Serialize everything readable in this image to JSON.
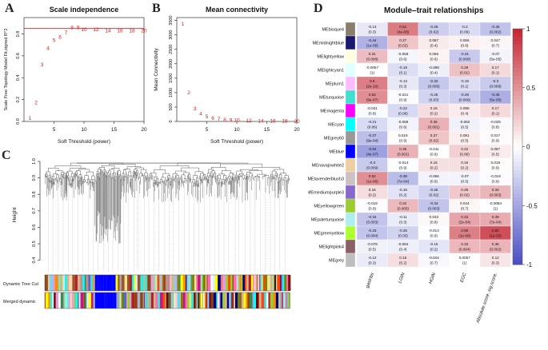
{
  "panels": {
    "A": "A",
    "B": "B",
    "C": "C",
    "D": "D"
  },
  "chart_data": [
    {
      "type": "scatter",
      "panel": "A",
      "title": "Scale independence",
      "xlabel": "Soft Threshold (power)",
      "ylabel": "Scale Free Topology Model Fit,signed R^2",
      "xlim": [
        0,
        20
      ],
      "ylim": [
        0,
        0.95
      ],
      "xticks": [
        "5",
        "10",
        "15",
        "20"
      ],
      "yticks": [
        "0.0",
        "0.2",
        "0.4",
        "0.6",
        "0.8"
      ],
      "cutoff_line": 0.85,
      "points": [
        {
          "x": 1,
          "y": 0.03,
          "label": "1"
        },
        {
          "x": 2,
          "y": 0.17,
          "label": "2"
        },
        {
          "x": 3,
          "y": 0.52,
          "label": "3"
        },
        {
          "x": 4,
          "y": 0.67,
          "label": "4"
        },
        {
          "x": 5,
          "y": 0.74,
          "label": "5"
        },
        {
          "x": 6,
          "y": 0.77,
          "label": "6"
        },
        {
          "x": 7,
          "y": 0.81,
          "label": "7"
        },
        {
          "x": 8,
          "y": 0.86,
          "label": "8"
        },
        {
          "x": 9,
          "y": 0.86,
          "label": "9"
        },
        {
          "x": 10,
          "y": 0.84,
          "label": "10"
        },
        {
          "x": 12,
          "y": 0.84,
          "label": "12"
        },
        {
          "x": 14,
          "y": 0.83,
          "label": "14"
        },
        {
          "x": 16,
          "y": 0.83,
          "label": "16"
        },
        {
          "x": 18,
          "y": 0.83,
          "label": "18"
        },
        {
          "x": 20,
          "y": 0.83,
          "label": "20"
        }
      ]
    },
    {
      "type": "scatter",
      "panel": "B",
      "title": "Mean connectivity",
      "xlabel": "Soft Threshold (power)",
      "ylabel": "Mean Connectivity",
      "xlim": [
        0,
        20
      ],
      "ylim": [
        0,
        3600
      ],
      "xticks": [
        "5",
        "10",
        "15",
        "20"
      ],
      "yticks": [
        "0",
        "500",
        "1000",
        "1500",
        "2000",
        "2500",
        "3000",
        "3500"
      ],
      "points": [
        {
          "x": 1,
          "y": 3380,
          "label": "1"
        },
        {
          "x": 2,
          "y": 1000,
          "label": "2"
        },
        {
          "x": 3,
          "y": 450,
          "label": "3"
        },
        {
          "x": 4,
          "y": 260,
          "label": "4"
        },
        {
          "x": 5,
          "y": 170,
          "label": "5"
        },
        {
          "x": 6,
          "y": 110,
          "label": "6"
        },
        {
          "x": 7,
          "y": 80,
          "label": "7"
        },
        {
          "x": 8,
          "y": 60,
          "label": "8"
        },
        {
          "x": 9,
          "y": 45,
          "label": "9"
        },
        {
          "x": 10,
          "y": 35,
          "label": "10"
        },
        {
          "x": 12,
          "y": 25,
          "label": "12"
        },
        {
          "x": 14,
          "y": 15,
          "label": "14"
        },
        {
          "x": 16,
          "y": 10,
          "label": "16"
        },
        {
          "x": 18,
          "y": 8,
          "label": "18"
        },
        {
          "x": 20,
          "y": 5,
          "label": "20"
        }
      ]
    },
    {
      "type": "dendrogram",
      "panel": "C",
      "title": "Cluster Dendrogram",
      "ylabel": "Height",
      "yticks": [
        "0.4",
        "0.5",
        "0.6",
        "0.7",
        "0.8",
        "0.9",
        "1.0"
      ],
      "ylim": [
        0.35,
        1.0
      ],
      "row_labels": [
        "Dynamic Tree Cut",
        "Merged dynamic"
      ],
      "palette": [
        "#7f0000",
        "#ffd7a8",
        "#a0522d",
        "#ffffff",
        "#c71585",
        "#808000",
        "#ff69b4",
        "#40e0d0",
        "#9acd32",
        "#87ceeb",
        "#d2b48c",
        "#ffc0cb",
        "#a9a9a9",
        "#6a5acd",
        "#ff8c00",
        "#e6e6fa",
        "#90ee90",
        "#b22222",
        "#00ffff",
        "#ffff00",
        "#000080",
        "#f0e68c",
        "#bc8f8f",
        "#dda0dd",
        "#2e8b57",
        "#8b4513",
        "#ff4500",
        "#7fffd4"
      ],
      "blue_block": "#0000ff"
    },
    {
      "type": "heatmap",
      "panel": "D",
      "title": "Module–trait relationships",
      "columns": [
        "gastritis",
        "LGIN",
        "HGIN",
        "EGC",
        "Absolute.score..sig.score."
      ],
      "legend_ticks": [
        "1",
        "0.5",
        "0",
        "-0.5",
        "-1"
      ],
      "vrange": [
        -1,
        1
      ],
      "rows": [
        {
          "module": "MEbisque4",
          "color": "#8b7d6b",
          "cells": [
            {
              "r": -0.13,
              "p": "(0.3)"
            },
            {
              "r": 0.61,
              "p": "(4e-08)"
            },
            {
              "r": -0.28,
              "p": "(0.02)"
            },
            {
              "r": -0.2,
              "p": "(0.09)"
            },
            {
              "r": -0.35,
              "p": "(0.002)"
            }
          ]
        },
        {
          "module": "MEmidnightblue",
          "color": "#191970",
          "cells": [
            {
              "r": -0.44,
              "p": "(1e-05)"
            },
            {
              "r": 0.27,
              "p": "(0.02)"
            },
            {
              "r": 0.097,
              "p": "(0.4)"
            },
            {
              "r": 0.066,
              "p": "(0.6)"
            },
            {
              "r": 0.047,
              "p": "(0.7)"
            }
          ]
        },
        {
          "module": "MElightyellow",
          "color": "#ffffe0",
          "cells": [
            {
              "r": 0.31,
              "p": "(0.008)"
            },
            {
              "r": -0.058,
              "p": "(0.6)"
            },
            {
              "r": 0.056,
              "p": "(0.6)"
            },
            {
              "r": -0.31,
              "p": "(0.008)"
            },
            {
              "r": -0.07,
              "p": "(5e-05)"
            }
          ]
        },
        {
          "module": "MElightcyan1",
          "color": "#e0ffff",
          "cells": [
            {
              "r": -0.0057,
              "p": "(1)"
            },
            {
              "r": -0.19,
              "p": "(0.1)"
            },
            {
              "r": -0.089,
              "p": "(0.4)"
            },
            {
              "r": 0.29,
              "p": "(0.01)"
            },
            {
              "r": 0.17,
              "p": "(0.1)"
            }
          ]
        },
        {
          "module": "MEplum1",
          "color": "#ffbbff",
          "cells": [
            {
              "r": 0.6,
              "p": "(2e-10)"
            },
            {
              "r": -0.13,
              "p": "(0.3)"
            },
            {
              "r": -0.32,
              "p": "(0.005)"
            },
            {
              "r": -0.19,
              "p": "(0.1)"
            },
            {
              "r": -0.3,
              "p": "(0.009)"
            }
          ]
        },
        {
          "module": "MEturquoise",
          "color": "#40e0d0",
          "cells": [
            {
              "r": 0.53,
              "p": "(9e-07)"
            },
            {
              "r": -0.021,
              "p": "(0.9)"
            },
            {
              "r": -0.25,
              "p": "(0.03)"
            },
            {
              "r": -0.29,
              "p": "(0.009)"
            },
            {
              "r": -0.46,
              "p": "(5e-05)"
            }
          ]
        },
        {
          "module": "MEmagenta",
          "color": "#ff00ff",
          "cells": [
            {
              "r": -0.031,
              "p": "(0.8)"
            },
            {
              "r": -0.22,
              "p": "(0.06)"
            },
            {
              "r": 0.16,
              "p": "(0.2)"
            },
            {
              "r": 0.088,
              "p": "(0.4)"
            },
            {
              "r": 0.17,
              "p": "(0.1)"
            }
          ]
        },
        {
          "module": "MEcyan",
          "color": "#00ffff",
          "cells": [
            {
              "r": -0.21,
              "p": "(0.06)"
            },
            {
              "r": -0.068,
              "p": "(0.6)"
            },
            {
              "r": 0.36,
              "p": "(0.001)"
            },
            {
              "r": -0.082,
              "p": "(0.5)"
            },
            {
              "r": -0.028,
              "p": "(0.8)"
            }
          ]
        },
        {
          "module": "MEgrey60",
          "color": "#999999",
          "cells": [
            {
              "r": -0.37,
              "p": "(9e-04)"
            },
            {
              "r": 0.018,
              "p": "(0.9)"
            },
            {
              "r": 0.27,
              "p": "(0.02)"
            },
            {
              "r": 0.081,
              "p": "(0.5)"
            },
            {
              "r": 0.017,
              "p": "(0.9)"
            }
          ]
        },
        {
          "module": "MEblue",
          "color": "#0000ff",
          "cells": [
            {
              "r": -0.54,
              "p": "(4e-07)"
            },
            {
              "r": 0.36,
              "p": "(0.001)"
            },
            {
              "r": -0.011,
              "p": "(0.9)"
            },
            {
              "r": 0.22,
              "p": "(0.06)"
            },
            {
              "r": 0.087,
              "p": "(0.5)"
            }
          ]
        },
        {
          "module": "MEnavajowhite2",
          "color": "#eecfa1",
          "cells": [
            {
              "r": -0.3,
              "p": "(0.009)"
            },
            {
              "r": -0.014,
              "p": "(0.9)"
            },
            {
              "r": 0.15,
              "p": "(0.2)"
            },
            {
              "r": 0.15,
              "p": "(0.2)"
            },
            {
              "r": 0.018,
              "p": "(0.9)"
            }
          ]
        },
        {
          "module": "MElavenderblush3",
          "color": "#cdc1c5",
          "cells": [
            {
              "r": 0.52,
              "p": "(1e-06)"
            },
            {
              "r": -0.38,
              "p": "(7e-04)"
            },
            {
              "r": -0.066,
              "p": "(0.6)"
            },
            {
              "r": -0.07,
              "p": "(0.5)"
            },
            {
              "r": -0.019,
              "p": "(0.9)"
            }
          ]
        },
        {
          "module": "MEmediumpurple3",
          "color": "#8968cd",
          "cells": [
            {
              "r": 0.16,
              "p": "(0.2)"
            },
            {
              "r": -0.16,
              "p": "(0.2)"
            },
            {
              "r": -0.26,
              "p": "(0.02)"
            },
            {
              "r": 0.26,
              "p": "(0.02)"
            },
            {
              "r": 0.34,
              "p": "(0.003)"
            }
          ]
        },
        {
          "module": "MEyellowgreen",
          "color": "#9acd32",
          "cells": [
            {
              "r": -0.018,
              "p": "(0.9)"
            },
            {
              "r": 0.32,
              "p": "(0.005)"
            },
            {
              "r": -0.34,
              "p": "(0.003)"
            },
            {
              "r": 0.044,
              "p": "(0.7)"
            },
            {
              "r": -0.0084,
              "p": "(1)"
            }
          ]
        },
        {
          "module": "MEpaleturquoise",
          "color": "#afeeee",
          "cells": [
            {
              "r": -0.34,
              "p": "(0.003)"
            },
            {
              "r": -0.11,
              "p": "(0.3)"
            },
            {
              "r": 0.033,
              "p": "(0.8)"
            },
            {
              "r": 0.42,
              "p": "(2e-04)"
            },
            {
              "r": 0.39,
              "p": "(7e-04)"
            }
          ]
        },
        {
          "module": "MEgreenyellow",
          "color": "#adff2f",
          "cells": [
            {
              "r": -0.33,
              "p": "(0.004)"
            },
            {
              "r": -0.25,
              "p": "(0.03)"
            },
            {
              "r": -0.014,
              "p": "(0.9)"
            },
            {
              "r": 0.59,
              "p": "(1e-08)"
            },
            {
              "r": 0.82,
              "p": "(1e-20)"
            }
          ]
        },
        {
          "module": "MElightpink4",
          "color": "#8b5f65",
          "cells": [
            {
              "r": -0.078,
              "p": "(0.5)"
            },
            {
              "r": -0.094,
              "p": "(0.4)"
            },
            {
              "r": -0.15,
              "p": "(0.2)"
            },
            {
              "r": 0.33,
              "p": "(0.004)"
            },
            {
              "r": 0.35,
              "p": "(0.002)"
            }
          ]
        },
        {
          "module": "MEgrey",
          "color": "#bebebe",
          "cells": [
            {
              "r": -0.12,
              "p": "(0.3)"
            },
            {
              "r": 0.16,
              "p": "(0.2)"
            },
            {
              "r": -0.044,
              "p": "(0.7)"
            },
            {
              "r": 0.0057,
              "p": "(1)"
            },
            {
              "r": 0.12,
              "p": "(0.3)"
            }
          ]
        }
      ]
    }
  ]
}
